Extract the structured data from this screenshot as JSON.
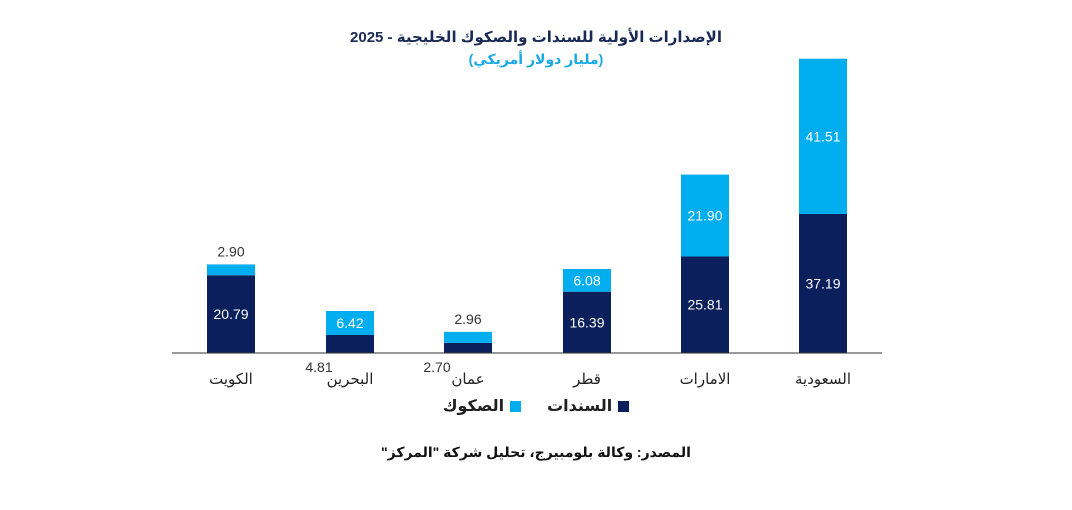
{
  "chart_data": {
    "type": "bar",
    "stacked": true,
    "title": "الإصدارات الأولية للسندات والصكوك الخليجية - 2025",
    "subtitle": "(مليار دولار أمريكي)",
    "categories": [
      "الكويت",
      "البحرين",
      "عمان",
      "قطر",
      "الامارات",
      "السعودية"
    ],
    "series": [
      {
        "name": "السندات",
        "color": "#0a1f5c",
        "values": [
          20.79,
          4.81,
          2.7,
          16.39,
          25.81,
          37.19
        ],
        "labels": [
          "20.79",
          "4.81",
          "2.70",
          "16.39",
          "25.81",
          "37.19"
        ]
      },
      {
        "name": "الصكوك",
        "color": "#00aeef",
        "values": [
          2.9,
          6.42,
          2.96,
          6.08,
          21.9,
          41.51
        ],
        "labels": [
          "2.90",
          "6.42",
          "2.96",
          "6.08",
          "21.90",
          "41.51"
        ]
      }
    ],
    "legend_position": "bottom",
    "grid": false
  },
  "source_text": "المصدر: وكالة بلومبيرج، تحليل شركة \"المركز\""
}
